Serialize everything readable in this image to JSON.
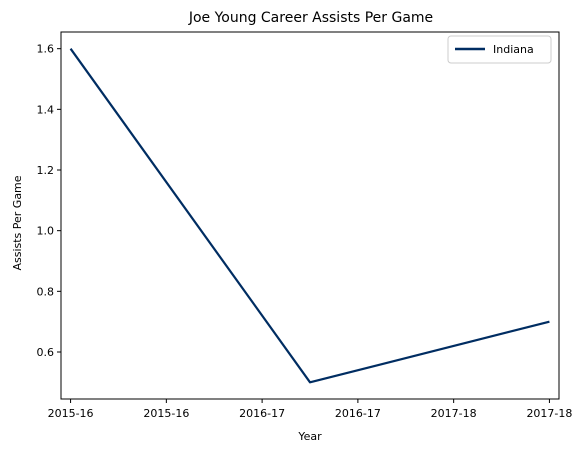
{
  "chart_data": {
    "type": "line",
    "title": "Joe Young  Career Assists Per Game",
    "xlabel": "Year",
    "ylabel": "Assists Per Game",
    "x_tick_labels": [
      "2015-16",
      "2015-16",
      "2016-17",
      "2016-17",
      "2017-18",
      "2017-18"
    ],
    "x_range": [
      -0.1,
      5.1
    ],
    "ylim": [
      0.445,
      1.655
    ],
    "y_ticks": [
      0.6,
      0.8,
      1.0,
      1.2,
      1.4,
      1.6
    ],
    "y_tick_labels": [
      "0.6",
      "0.8",
      "1.0",
      "1.2",
      "1.4",
      "1.6"
    ],
    "grid": false,
    "legend_position": "top-right",
    "series": [
      {
        "name": "Indiana",
        "color": "#002D62",
        "points": [
          {
            "x": 0,
            "y": 1.6
          },
          {
            "x": 2.5,
            "y": 0.5
          },
          {
            "x": 5,
            "y": 0.7
          }
        ]
      }
    ]
  }
}
